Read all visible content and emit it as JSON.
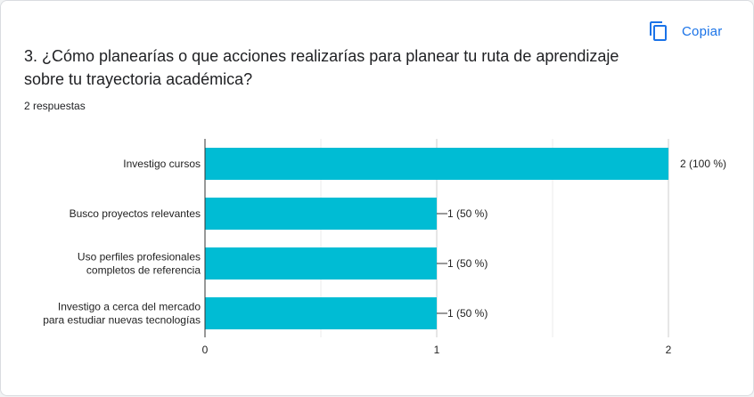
{
  "header": {
    "copy_label": "Copiar",
    "copy_icon": "content-copy-icon"
  },
  "question": {
    "title_line1": "3. ¿Cómo planearías o que acciones realizarías para planear tu ruta de aprendizaje",
    "title_line2": "sobre tu trayectoria académica?",
    "responses_label": "2 respuestas"
  },
  "colors": {
    "bar": "#00bcd4",
    "accent": "#1a73e8"
  },
  "chart_data": {
    "type": "bar",
    "orientation": "horizontal",
    "categories": [
      [
        "Investigo cursos"
      ],
      [
        "Busco proyectos relevantes"
      ],
      [
        "Uso perfiles profesionales",
        "completos de referencia"
      ],
      [
        "Investigo a cerca del mercado",
        "para estudiar nuevas tecnologías"
      ]
    ],
    "values": [
      2,
      1,
      1,
      1
    ],
    "data_labels": [
      "2 (100 %)",
      "1 (50 %)",
      "1 (50 %)",
      "1 (50 %)"
    ],
    "xlim": [
      0,
      2
    ],
    "xticks": [
      "0",
      "1",
      "2"
    ],
    "grid": true
  }
}
